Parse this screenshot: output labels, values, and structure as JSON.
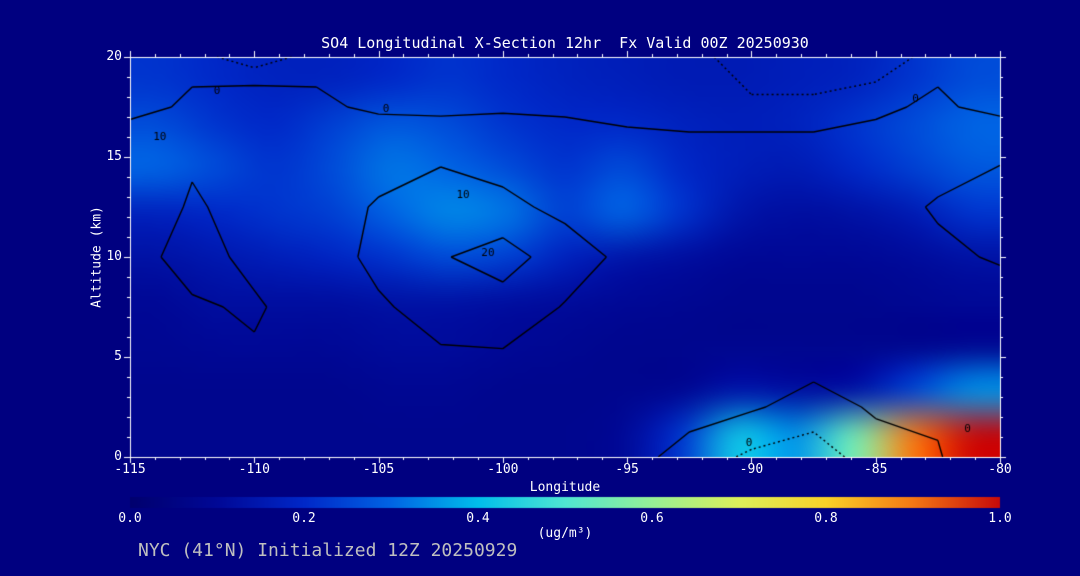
{
  "colors": {
    "background": "#000080",
    "axis": "#ffffff",
    "text": "#ffffff",
    "footer_text": "#bfbfbf",
    "contour": "#000000"
  },
  "footer": "NYC (41°N) Initialized 12Z 20250929",
  "chart_data": {
    "type": "heatmap",
    "title": "SO4 Longitudinal X-Section 12hr  Fx Valid 00Z 20250930",
    "xlabel": "Longitude",
    "ylabel": "Altitude (km)",
    "xlim": [
      -115,
      -80
    ],
    "ylim": [
      0,
      20
    ],
    "x_tick_values": [
      -115,
      -110,
      -105,
      -100,
      -95,
      -90,
      -85,
      -80
    ],
    "x_tick_labels": [
      "-115",
      "-110",
      "-105",
      "-100",
      "-95",
      "-90",
      "-85",
      "-80"
    ],
    "y_tick_values": [
      0,
      5,
      10,
      15,
      20
    ],
    "y_tick_labels": [
      "0",
      "5",
      "10",
      "15",
      "20"
    ],
    "minor_tick_step": 1,
    "grid_orientation": "rows top-to-bottom = 20km to 0km; cols left-to-right = -115 to -80",
    "so4_values": [
      [
        0.22,
        0.2,
        0.18,
        0.18,
        0.2,
        0.22,
        0.2,
        0.18,
        0.17,
        0.16,
        0.16,
        0.17,
        0.18,
        0.22,
        0.26
      ],
      [
        0.26,
        0.22,
        0.2,
        0.24,
        0.28,
        0.26,
        0.22,
        0.2,
        0.2,
        0.18,
        0.17,
        0.18,
        0.22,
        0.26,
        0.3
      ],
      [
        0.3,
        0.26,
        0.22,
        0.26,
        0.32,
        0.3,
        0.26,
        0.22,
        0.26,
        0.2,
        0.17,
        0.16,
        0.2,
        0.24,
        0.28
      ],
      [
        0.18,
        0.2,
        0.22,
        0.24,
        0.3,
        0.34,
        0.32,
        0.24,
        0.3,
        0.22,
        0.14,
        0.12,
        0.13,
        0.16,
        0.22
      ],
      [
        0.13,
        0.15,
        0.17,
        0.19,
        0.22,
        0.26,
        0.24,
        0.18,
        0.14,
        0.12,
        0.1,
        0.1,
        0.1,
        0.11,
        0.13
      ],
      [
        0.1,
        0.12,
        0.12,
        0.12,
        0.13,
        0.13,
        0.12,
        0.11,
        0.1,
        0.09,
        0.08,
        0.08,
        0.08,
        0.09,
        0.1
      ],
      [
        0.09,
        0.1,
        0.1,
        0.1,
        0.11,
        0.11,
        0.1,
        0.09,
        0.08,
        0.08,
        0.08,
        0.08,
        0.08,
        0.08,
        0.09
      ],
      [
        0.08,
        0.08,
        0.08,
        0.08,
        0.09,
        0.09,
        0.08,
        0.08,
        0.08,
        0.09,
        0.14,
        0.12,
        0.13,
        0.25,
        0.35
      ],
      [
        0.08,
        0.08,
        0.08,
        0.08,
        0.08,
        0.08,
        0.08,
        0.08,
        0.1,
        0.22,
        0.42,
        0.35,
        0.55,
        0.9,
        1.0
      ]
    ],
    "contour_overlay": {
      "levels": [
        0,
        10,
        20
      ],
      "dashed_levels": [
        -2.5
      ],
      "values": [
        [
          -1.5,
          -1.5,
          -4,
          -1.5,
          -1.5,
          -1.5,
          -1.5,
          -1.5,
          -1.5,
          -1.5,
          -4,
          -4,
          -4,
          -1.5,
          -1.5
        ],
        [
          -2,
          1,
          3,
          1,
          -1,
          -2,
          -1,
          -1,
          -2,
          -2,
          -2,
          -2,
          -1,
          1,
          -2
        ],
        [
          6,
          9,
          5,
          3,
          6,
          9,
          7,
          4,
          3,
          2,
          2,
          2,
          3,
          6,
          9
        ],
        [
          4,
          11,
          7,
          5,
          11,
          14,
          12,
          8,
          6,
          4,
          3,
          3,
          6,
          11,
          15
        ],
        [
          7,
          13,
          8,
          6,
          12,
          19,
          25,
          14,
          8,
          6,
          4,
          4,
          5,
          8,
          11
        ],
        [
          4,
          9,
          11,
          6,
          9,
          13,
          15,
          9.5,
          6,
          4,
          3,
          2,
          3,
          4,
          5
        ],
        [
          2,
          7,
          9,
          5,
          7,
          9,
          9,
          6,
          4,
          2,
          2,
          1,
          2,
          2,
          3
        ],
        [
          1,
          5,
          7,
          4,
          6,
          7,
          6,
          4,
          3,
          1,
          0.3,
          -1,
          0.3,
          1,
          2
        ],
        [
          0.3,
          2,
          3,
          2,
          4,
          5,
          4,
          2,
          1,
          -1,
          -3,
          -4,
          -1,
          -0.5,
          6
        ]
      ],
      "labels": [
        {
          "text": "0",
          "x": -111.5,
          "y": 18.3
        },
        {
          "text": "0",
          "x": -104.7,
          "y": 17.4
        },
        {
          "text": "0",
          "x": -83.4,
          "y": 17.9
        },
        {
          "text": "10",
          "x": -113.8,
          "y": 16.0
        },
        {
          "text": "10",
          "x": -101.6,
          "y": 13.1
        },
        {
          "text": "20",
          "x": -100.6,
          "y": 10.2
        },
        {
          "text": "0",
          "x": -90.1,
          "y": 0.7
        },
        {
          "text": "0",
          "x": -81.3,
          "y": 1.4
        }
      ]
    },
    "colorbar": {
      "label": "(ug/m³)",
      "min": 0.0,
      "max": 1.0,
      "tick_values": [
        0.0,
        0.2,
        0.4,
        0.6,
        0.8,
        1.0
      ],
      "tick_labels": [
        "0.0",
        "0.2",
        "0.4",
        "0.6",
        "0.8",
        "1.0"
      ],
      "stops": [
        {
          "t": 0.0,
          "color": "#00006e"
        },
        {
          "t": 0.1,
          "color": "#000896"
        },
        {
          "t": 0.2,
          "color": "#0028c8"
        },
        {
          "t": 0.3,
          "color": "#0064e4"
        },
        {
          "t": 0.4,
          "color": "#00beeb"
        },
        {
          "t": 0.5,
          "color": "#50e6d2"
        },
        {
          "t": 0.6,
          "color": "#96f096"
        },
        {
          "t": 0.7,
          "color": "#dcf05a"
        },
        {
          "t": 0.8,
          "color": "#fad228"
        },
        {
          "t": 0.9,
          "color": "#f57814"
        },
        {
          "t": 1.0,
          "color": "#c80a0a"
        }
      ]
    }
  }
}
